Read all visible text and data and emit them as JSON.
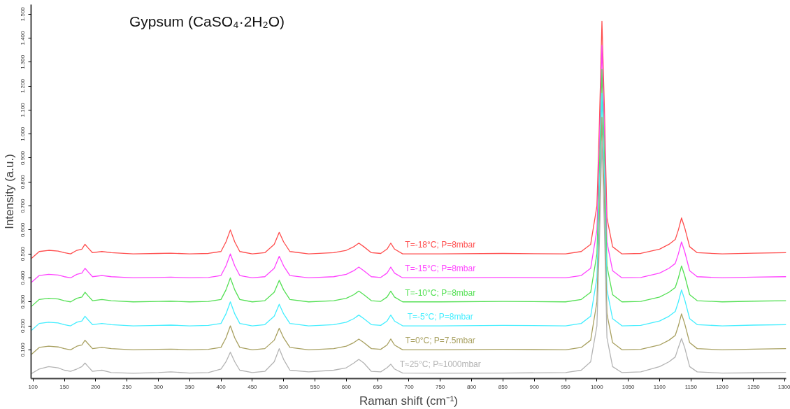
{
  "chart_data": {
    "type": "line",
    "title": "Gypsum (CaSO₄·2H₂O)",
    "xlabel": "Raman shift (cm⁻¹)",
    "ylabel": "Intensity (a.u.)",
    "x": [
      97,
      110,
      125,
      140,
      150,
      160,
      170,
      178,
      183,
      188,
      195,
      210,
      225,
      260,
      300,
      320,
      350,
      380,
      400,
      408,
      415,
      422,
      430,
      450,
      470,
      485,
      493,
      500,
      510,
      540,
      580,
      600,
      612,
      620,
      628,
      640,
      655,
      665,
      671,
      677,
      690,
      750,
      850,
      950,
      975,
      990,
      1000,
      1004,
      1008,
      1012,
      1016,
      1025,
      1040,
      1070,
      1100,
      1115,
      1125,
      1130,
      1135,
      1140,
      1148,
      1160,
      1200,
      1250,
      1302
    ],
    "series": [
      {
        "name": "T=-18°C; P=8mbar",
        "color": "#ff4d4d",
        "values": [
          0.48,
          0.51,
          0.515,
          0.512,
          0.505,
          0.5,
          0.515,
          0.52,
          0.54,
          0.525,
          0.505,
          0.51,
          0.505,
          0.5,
          0.502,
          0.503,
          0.5,
          0.502,
          0.51,
          0.55,
          0.6,
          0.55,
          0.51,
          0.5,
          0.505,
          0.54,
          0.59,
          0.55,
          0.51,
          0.5,
          0.505,
          0.515,
          0.53,
          0.545,
          0.53,
          0.505,
          0.502,
          0.52,
          0.545,
          0.52,
          0.5,
          0.5,
          0.502,
          0.5,
          0.51,
          0.54,
          0.7,
          1.05,
          1.47,
          1.1,
          0.65,
          0.53,
          0.5,
          0.502,
          0.52,
          0.54,
          0.56,
          0.6,
          0.65,
          0.61,
          0.53,
          0.505,
          0.5,
          0.503,
          0.505
        ]
      },
      {
        "name": "T=-15°C; P=8mbar",
        "color": "#ff44ff",
        "values": [
          0.38,
          0.41,
          0.415,
          0.412,
          0.405,
          0.4,
          0.415,
          0.42,
          0.44,
          0.425,
          0.405,
          0.41,
          0.405,
          0.4,
          0.402,
          0.403,
          0.4,
          0.402,
          0.41,
          0.45,
          0.5,
          0.45,
          0.41,
          0.4,
          0.405,
          0.44,
          0.49,
          0.45,
          0.41,
          0.4,
          0.405,
          0.415,
          0.43,
          0.445,
          0.43,
          0.405,
          0.402,
          0.42,
          0.445,
          0.42,
          0.4,
          0.4,
          0.402,
          0.4,
          0.41,
          0.44,
          0.6,
          0.95,
          1.37,
          1.0,
          0.55,
          0.43,
          0.4,
          0.402,
          0.42,
          0.44,
          0.46,
          0.5,
          0.55,
          0.51,
          0.43,
          0.405,
          0.4,
          0.403,
          0.405
        ]
      },
      {
        "name": "T=-10°C; P=8mbar",
        "color": "#55e055",
        "values": [
          0.28,
          0.31,
          0.315,
          0.312,
          0.305,
          0.3,
          0.315,
          0.32,
          0.34,
          0.325,
          0.305,
          0.31,
          0.305,
          0.3,
          0.302,
          0.303,
          0.3,
          0.302,
          0.31,
          0.35,
          0.4,
          0.35,
          0.31,
          0.3,
          0.305,
          0.34,
          0.39,
          0.35,
          0.31,
          0.3,
          0.305,
          0.315,
          0.33,
          0.345,
          0.33,
          0.305,
          0.302,
          0.32,
          0.345,
          0.32,
          0.3,
          0.3,
          0.302,
          0.3,
          0.31,
          0.34,
          0.5,
          0.85,
          1.27,
          0.9,
          0.45,
          0.33,
          0.3,
          0.302,
          0.32,
          0.34,
          0.36,
          0.4,
          0.45,
          0.41,
          0.33,
          0.305,
          0.3,
          0.303,
          0.305
        ]
      },
      {
        "name": "T=-5°C; P=8mbar",
        "color": "#44eeff",
        "values": [
          0.18,
          0.21,
          0.215,
          0.212,
          0.205,
          0.2,
          0.215,
          0.22,
          0.24,
          0.225,
          0.205,
          0.21,
          0.205,
          0.2,
          0.202,
          0.203,
          0.2,
          0.202,
          0.21,
          0.25,
          0.3,
          0.25,
          0.21,
          0.2,
          0.205,
          0.24,
          0.29,
          0.25,
          0.21,
          0.2,
          0.205,
          0.215,
          0.23,
          0.245,
          0.23,
          0.205,
          0.202,
          0.22,
          0.245,
          0.22,
          0.2,
          0.2,
          0.202,
          0.2,
          0.21,
          0.24,
          0.4,
          0.75,
          1.17,
          0.8,
          0.35,
          0.23,
          0.2,
          0.202,
          0.22,
          0.24,
          0.26,
          0.3,
          0.35,
          0.31,
          0.23,
          0.205,
          0.2,
          0.203,
          0.205
        ]
      },
      {
        "name": "T=0°C; P=7.5mbar",
        "color": "#a8a060",
        "values": [
          0.08,
          0.11,
          0.115,
          0.112,
          0.105,
          0.1,
          0.115,
          0.12,
          0.14,
          0.125,
          0.105,
          0.11,
          0.105,
          0.1,
          0.102,
          0.103,
          0.1,
          0.102,
          0.11,
          0.15,
          0.2,
          0.15,
          0.11,
          0.1,
          0.105,
          0.14,
          0.19,
          0.15,
          0.11,
          0.1,
          0.105,
          0.115,
          0.13,
          0.145,
          0.13,
          0.105,
          0.102,
          0.12,
          0.145,
          0.12,
          0.1,
          0.1,
          0.102,
          0.1,
          0.11,
          0.14,
          0.3,
          0.65,
          1.07,
          0.7,
          0.25,
          0.13,
          0.1,
          0.102,
          0.12,
          0.14,
          0.16,
          0.2,
          0.25,
          0.21,
          0.13,
          0.105,
          0.1,
          0.103,
          0.105
        ]
      },
      {
        "name": "T≈25°C; P≈1000mbar",
        "color": "#b4b4b4",
        "values": [
          0,
          0.02,
          0.03,
          0.025,
          0.015,
          0.01,
          0.02,
          0.03,
          0.045,
          0.03,
          0.01,
          0.015,
          0.005,
          0.002,
          0.005,
          0.008,
          0.003,
          0.005,
          0.02,
          0.05,
          0.09,
          0.05,
          0.015,
          0.005,
          0.01,
          0.05,
          0.105,
          0.06,
          0.015,
          0.008,
          0.015,
          0.025,
          0.045,
          0.06,
          0.045,
          0.01,
          0.008,
          0.025,
          0.04,
          0.02,
          0.003,
          0.002,
          0.003,
          0.005,
          0.015,
          0.05,
          0.2,
          0.55,
          0.97,
          0.6,
          0.15,
          0.03,
          0.005,
          0.008,
          0.03,
          0.05,
          0.07,
          0.11,
          0.147,
          0.11,
          0.03,
          0.008,
          0.003,
          0.004,
          0.006
        ]
      }
    ],
    "xlim": [
      97,
      1302
    ],
    "ylim": [
      -0.02,
      1.54
    ],
    "xticks": [
      100,
      150,
      200,
      250,
      300,
      350,
      400,
      450,
      500,
      550,
      600,
      650,
      700,
      750,
      800,
      850,
      900,
      950,
      1000,
      1050,
      1100,
      1150,
      1200,
      1250,
      1300
    ],
    "yticks": [
      {
        "value": 0.1,
        "label": "0.100"
      },
      {
        "value": 0.2,
        "label": "0.200"
      },
      {
        "value": 0.3,
        "label": "0.300"
      },
      {
        "value": 0.4,
        "label": "0.400"
      },
      {
        "value": 0.5,
        "label": "0.500"
      },
      {
        "value": 0.6,
        "label": "0.600"
      },
      {
        "value": 0.7,
        "label": "0.700"
      },
      {
        "value": 0.8,
        "label": "0.800"
      },
      {
        "value": 0.9,
        "label": "0.900"
      },
      {
        "value": 1.0,
        "label": "1.000"
      },
      {
        "value": 1.1,
        "label": "1.100"
      },
      {
        "value": 1.2,
        "label": "1.200"
      },
      {
        "value": 1.3,
        "label": "1.300"
      },
      {
        "value": 1.4,
        "label": "1.400"
      },
      {
        "value": 1.5,
        "label": "1.500"
      }
    ],
    "grid": false,
    "legend": false,
    "marker": "none",
    "line_style": "solid"
  }
}
